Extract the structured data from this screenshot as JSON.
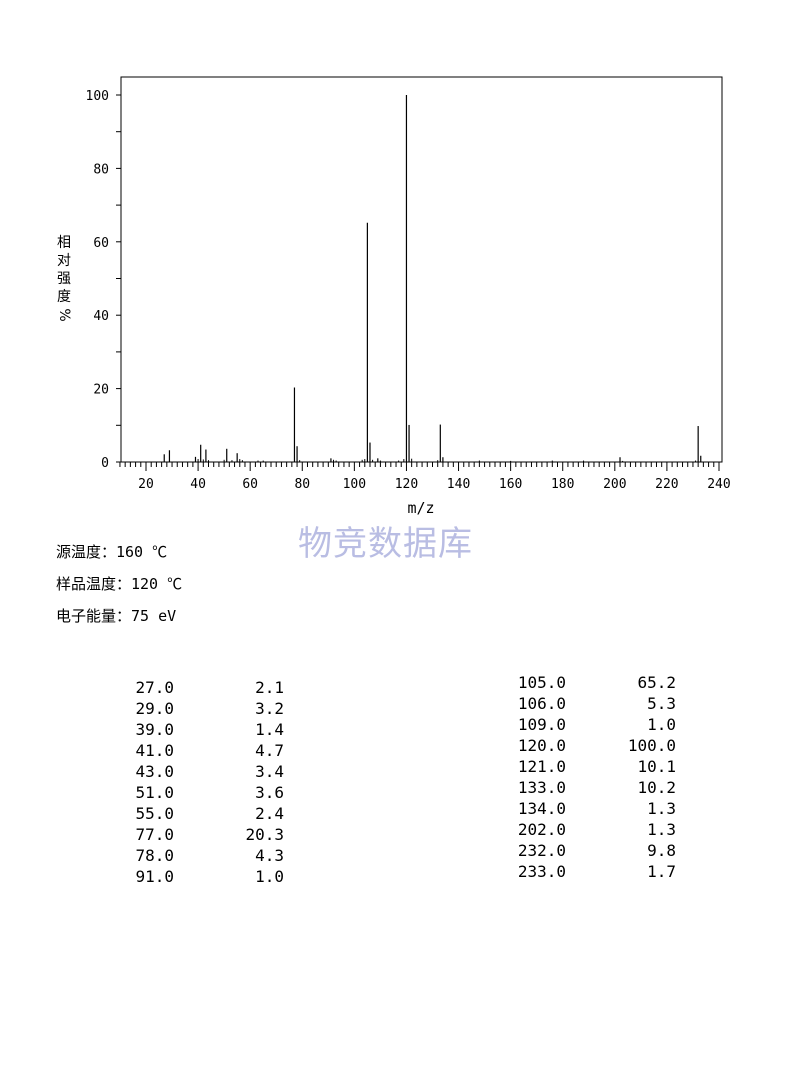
{
  "chart_data": {
    "type": "bar",
    "xlabel": "m/z",
    "ylabel": [
      "相",
      "对",
      "强",
      "度",
      "%"
    ],
    "xlim": [
      10,
      240
    ],
    "ylim": [
      0,
      105
    ],
    "x_ticks": [
      20,
      40,
      60,
      80,
      100,
      120,
      140,
      160,
      180,
      200,
      220,
      240
    ],
    "y_ticks": [
      0,
      20,
      40,
      60,
      80,
      100
    ],
    "grid": false,
    "peaks": [
      {
        "mz": 27,
        "intensity": 2.1
      },
      {
        "mz": 29,
        "intensity": 3.2
      },
      {
        "mz": 39,
        "intensity": 1.4
      },
      {
        "mz": 41,
        "intensity": 4.7
      },
      {
        "mz": 43,
        "intensity": 3.4
      },
      {
        "mz": 51,
        "intensity": 3.6
      },
      {
        "mz": 55,
        "intensity": 2.4
      },
      {
        "mz": 77,
        "intensity": 20.3
      },
      {
        "mz": 78,
        "intensity": 4.3
      },
      {
        "mz": 91,
        "intensity": 1.0
      },
      {
        "mz": 105,
        "intensity": 65.2
      },
      {
        "mz": 106,
        "intensity": 5.3
      },
      {
        "mz": 109,
        "intensity": 1.0
      },
      {
        "mz": 120,
        "intensity": 100.0
      },
      {
        "mz": 121,
        "intensity": 10.1
      },
      {
        "mz": 133,
        "intensity": 10.2
      },
      {
        "mz": 134,
        "intensity": 1.3
      },
      {
        "mz": 202,
        "intensity": 1.3
      },
      {
        "mz": 232,
        "intensity": 9.8
      },
      {
        "mz": 233,
        "intensity": 1.7
      }
    ],
    "minor_peaks": [
      {
        "mz": 40,
        "intensity": 0.8
      },
      {
        "mz": 42,
        "intensity": 0.7
      },
      {
        "mz": 44,
        "intensity": 0.5
      },
      {
        "mz": 50,
        "intensity": 0.6
      },
      {
        "mz": 53,
        "intensity": 0.5
      },
      {
        "mz": 56,
        "intensity": 0.8
      },
      {
        "mz": 57,
        "intensity": 0.5
      },
      {
        "mz": 63,
        "intensity": 0.4
      },
      {
        "mz": 65,
        "intensity": 0.4
      },
      {
        "mz": 79,
        "intensity": 0.5
      },
      {
        "mz": 92,
        "intensity": 0.6
      },
      {
        "mz": 93,
        "intensity": 0.4
      },
      {
        "mz": 103,
        "intensity": 0.6
      },
      {
        "mz": 104,
        "intensity": 0.8
      },
      {
        "mz": 107,
        "intensity": 0.6
      },
      {
        "mz": 110,
        "intensity": 0.4
      },
      {
        "mz": 117,
        "intensity": 0.4
      },
      {
        "mz": 119,
        "intensity": 0.8
      },
      {
        "mz": 122,
        "intensity": 0.9
      },
      {
        "mz": 132,
        "intensity": 0.5
      },
      {
        "mz": 148,
        "intensity": 0.4
      },
      {
        "mz": 160,
        "intensity": 0.3
      },
      {
        "mz": 176,
        "intensity": 0.4
      },
      {
        "mz": 188,
        "intensity": 0.4
      },
      {
        "mz": 203,
        "intensity": 0.3
      },
      {
        "mz": 231,
        "intensity": 0.4
      }
    ]
  },
  "watermark": "物竞数据库",
  "conditions": [
    "源温度：160 ℃",
    "样品温度：120 ℃",
    "电子能量：75 eV"
  ],
  "peak_table": {
    "left": [
      {
        "mz": "27.0",
        "intensity": "2.1"
      },
      {
        "mz": "29.0",
        "intensity": "3.2"
      },
      {
        "mz": "39.0",
        "intensity": "1.4"
      },
      {
        "mz": "41.0",
        "intensity": "4.7"
      },
      {
        "mz": "43.0",
        "intensity": "3.4"
      },
      {
        "mz": "51.0",
        "intensity": "3.6"
      },
      {
        "mz": "55.0",
        "intensity": "2.4"
      },
      {
        "mz": "77.0",
        "intensity": "20.3"
      },
      {
        "mz": "78.0",
        "intensity": "4.3"
      },
      {
        "mz": "91.0",
        "intensity": "1.0"
      }
    ],
    "right": [
      {
        "mz": "105.0",
        "intensity": "65.2"
      },
      {
        "mz": "106.0",
        "intensity": "5.3"
      },
      {
        "mz": "109.0",
        "intensity": "1.0"
      },
      {
        "mz": "120.0",
        "intensity": "100.0"
      },
      {
        "mz": "121.0",
        "intensity": "10.1"
      },
      {
        "mz": "133.0",
        "intensity": "10.2"
      },
      {
        "mz": "134.0",
        "intensity": "1.3"
      },
      {
        "mz": "202.0",
        "intensity": "1.3"
      },
      {
        "mz": "232.0",
        "intensity": "9.8"
      },
      {
        "mz": "233.0",
        "intensity": "1.7"
      }
    ]
  }
}
